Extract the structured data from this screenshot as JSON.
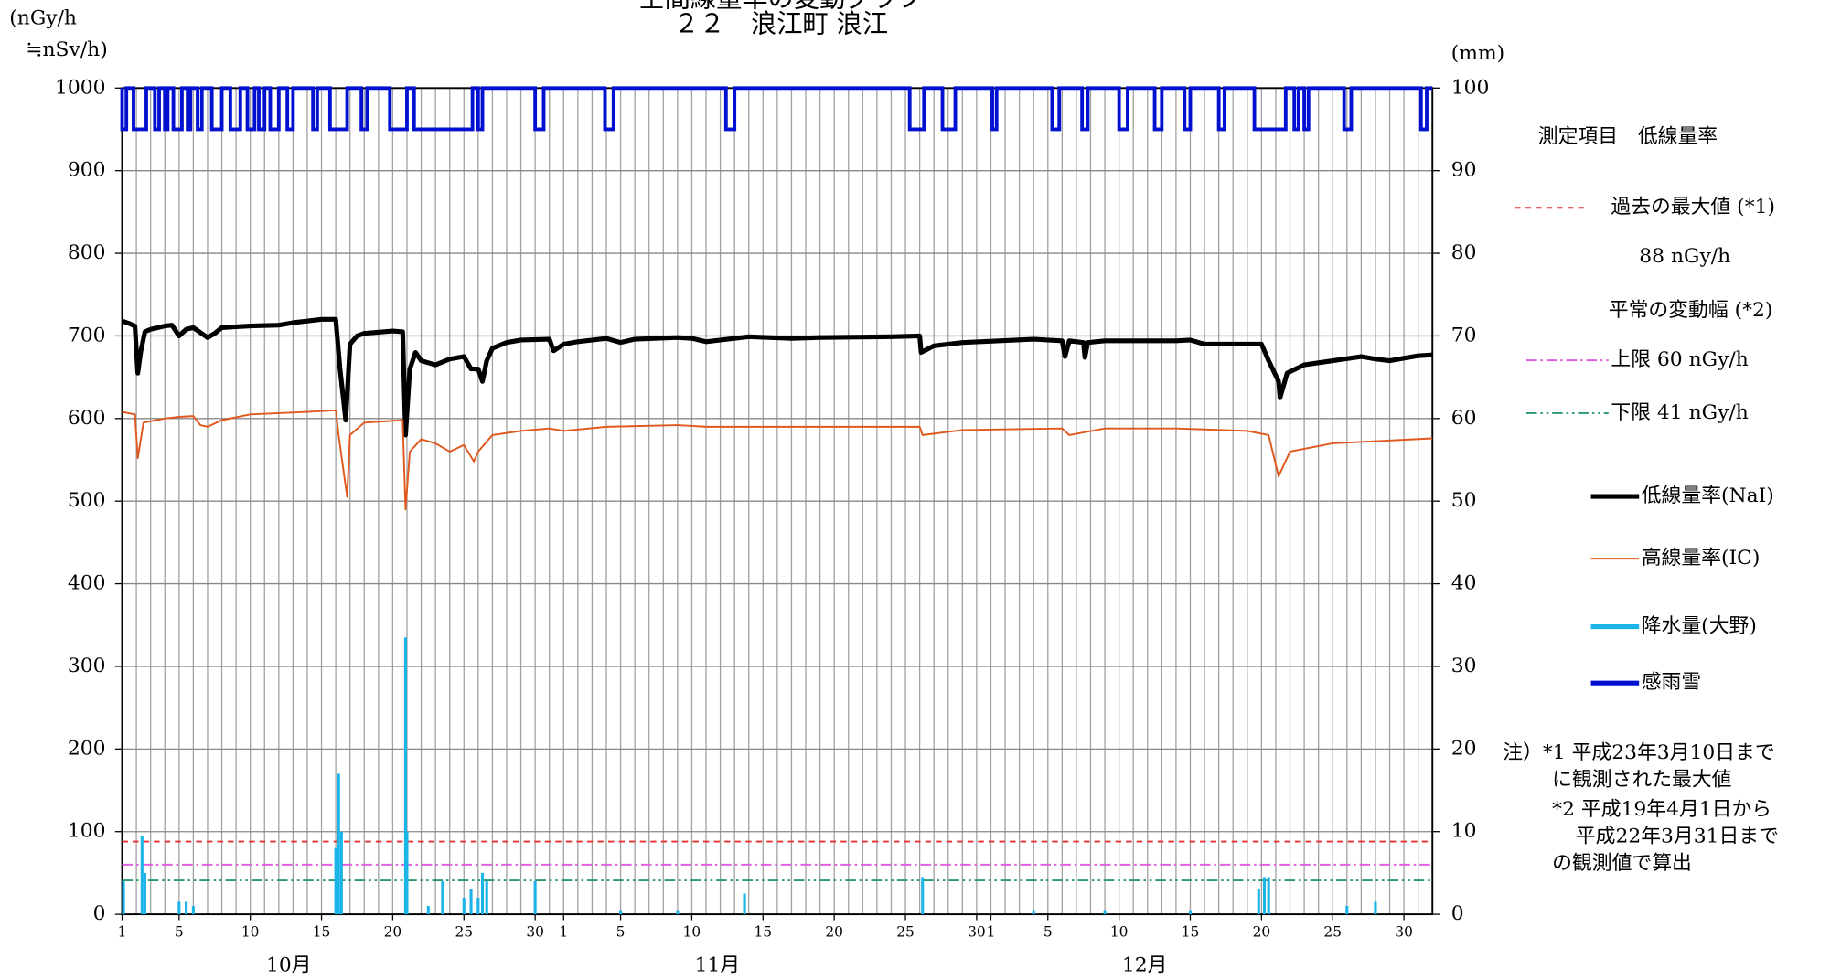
{
  "chart_data": {
    "type": "line",
    "title": "空間線量率の変動グラフ",
    "subtitle": "２２　浪江町 浪江",
    "ylabel": [
      "(nGy/h",
      "≒nSv/h)"
    ],
    "y2label": "(mm)",
    "xlim": [
      1,
      93
    ],
    "xticks": [
      1,
      5,
      10,
      15,
      20,
      25,
      30,
      {
        "value": 32,
        "label": "1"
      },
      {
        "value": 36,
        "label": "5"
      },
      {
        "value": 41,
        "label": "10"
      },
      {
        "value": 46,
        "label": "15"
      },
      {
        "value": 51,
        "label": "20"
      },
      {
        "value": 56,
        "label": "25"
      },
      {
        "value": 61,
        "label": "30"
      },
      {
        "value": 62,
        "label": "1"
      },
      {
        "value": 66,
        "label": "5"
      },
      {
        "value": 71,
        "label": "10"
      },
      {
        "value": 76,
        "label": "15"
      },
      {
        "value": 81,
        "label": "20"
      },
      {
        "value": 86,
        "label": "25"
      },
      {
        "value": 91,
        "label": "30"
      }
    ],
    "months": [
      "10月",
      "11月",
      "12月"
    ],
    "ylim": [
      0,
      1000
    ],
    "yticks": [
      0,
      100,
      200,
      300,
      400,
      500,
      600,
      700,
      800,
      900,
      1000
    ],
    "y2lim": [
      0,
      100
    ],
    "y2ticks": [
      0,
      10,
      20,
      30,
      40,
      50,
      60,
      70,
      80,
      90,
      100
    ],
    "grid": true,
    "legend_title": "測定項目　低線量率",
    "legend_heading2": "平常の変動幅 (*2)",
    "reference_lines": [
      {
        "name": "過去の最大値 (*1)",
        "label": "88 nGy/h",
        "value": 88,
        "color": "#e83030"
      },
      {
        "name": "上限 60 nGy/h",
        "value": 60,
        "color": "#e060e0"
      },
      {
        "name": "下限 41 nGy/h",
        "value": 41,
        "color": "#2a9a6a"
      }
    ],
    "notes": [
      "注）*1 平成23年3月10日まで",
      "に観測された最大値",
      "*2 平成19年4月1日から",
      "平成22年3月31日まで",
      "の観測値で算出"
    ],
    "series": [
      {
        "name": "低線量率(NaI)",
        "color": "#000000",
        "x": [
          1,
          1.5,
          1.9,
          2.1,
          2.3,
          2.6,
          3,
          4,
          4.5,
          5,
          5.5,
          6,
          7,
          7.5,
          8,
          10,
          12,
          13,
          14,
          15,
          16,
          16.3,
          16.7,
          17,
          17.5,
          18,
          20,
          20.7,
          20.9,
          21.2,
          21.6,
          22,
          23,
          24,
          25,
          25.5,
          26,
          26.3,
          26.6,
          27,
          28,
          29,
          31,
          31.3,
          32,
          33,
          35,
          36,
          37,
          40,
          41,
          42,
          45,
          48,
          50,
          55,
          57,
          57.1,
          58,
          60,
          65,
          67,
          67.2,
          67.5,
          68.5,
          68.6,
          68.8,
          70,
          75,
          76,
          77,
          80,
          81,
          81.5,
          82.2,
          82.3,
          82.8,
          84,
          86,
          88,
          89,
          90,
          91,
          92,
          93
        ],
        "values": [
          718,
          715,
          712,
          655,
          680,
          705,
          708,
          712,
          713,
          700,
          708,
          710,
          698,
          703,
          710,
          712,
          713,
          716,
          718,
          720,
          720,
          660,
          598,
          690,
          700,
          703,
          706,
          705,
          580,
          660,
          680,
          670,
          665,
          672,
          675,
          660,
          660,
          645,
          670,
          685,
          692,
          695,
          696,
          682,
          690,
          693,
          697,
          692,
          696,
          698,
          697,
          693,
          699,
          697,
          698,
          699,
          700,
          680,
          688,
          692,
          696,
          694,
          675,
          694,
          692,
          674,
          692,
          694,
          694,
          695,
          690,
          690,
          690,
          670,
          645,
          625,
          655,
          665,
          670,
          675,
          672,
          670,
          673,
          676,
          677
        ]
      },
      {
        "name": "高線量率(IC)",
        "color": "#e0581c",
        "x": [
          1,
          1.9,
          2.1,
          2.5,
          4,
          5,
          6,
          6.5,
          7,
          8,
          10,
          14,
          16,
          16.2,
          16.8,
          17,
          18,
          20.7,
          20.9,
          21.2,
          22,
          23,
          24,
          25,
          25.7,
          26,
          27,
          29,
          31,
          32,
          35,
          40,
          42,
          50,
          57,
          57.2,
          60,
          67,
          67.5,
          70,
          75,
          80,
          81.5,
          82.2,
          83,
          86,
          93
        ],
        "values": [
          608,
          605,
          552,
          595,
          600,
          602,
          603,
          592,
          590,
          598,
          605,
          608,
          610,
          580,
          505,
          580,
          595,
          598,
          490,
          560,
          575,
          570,
          560,
          568,
          548,
          560,
          580,
          585,
          588,
          585,
          590,
          592,
          590,
          590,
          590,
          580,
          586,
          588,
          580,
          588,
          588,
          585,
          580,
          530,
          560,
          570,
          576
        ]
      },
      {
        "name": "降水量(大野)",
        "color": "#1ab4e8",
        "type": "bar",
        "axis": "y2",
        "x": [
          1.1,
          2.4,
          2.6,
          5,
          5.5,
          6,
          16,
          16.2,
          16.4,
          20.9,
          21,
          22.5,
          23.5,
          25,
          25.5,
          26,
          26.3,
          26.6,
          30,
          36,
          40,
          44.7,
          57.2,
          65,
          70,
          76,
          80.8,
          81.2,
          81.5,
          87,
          89
        ],
        "values": [
          4,
          9.5,
          5,
          1.5,
          1.5,
          1,
          8,
          17,
          10,
          33.5,
          10,
          1,
          4,
          2,
          3,
          2,
          5,
          4,
          4,
          0.5,
          0.5,
          2.5,
          4.5,
          0.5,
          0.5,
          0.5,
          3,
          4.5,
          4.5,
          1,
          1.5
        ]
      },
      {
        "name": "感雨雪",
        "color": "#0010d0",
        "type": "step",
        "axis": "y2",
        "x": [
          1,
          1.3,
          1.8,
          2.7,
          3.3,
          3.6,
          4,
          4.2,
          4.6,
          5.2,
          5.6,
          5.8,
          6.3,
          6.6,
          7.3,
          8,
          8.6,
          9.3,
          9.8,
          10.3,
          10.6,
          11,
          11.4,
          12,
          12.6,
          13,
          14.4,
          14.7,
          15.6,
          16.8,
          17.8,
          18.2,
          19.8,
          21,
          21.5,
          25.6,
          26,
          26.3,
          30,
          30.6,
          34.9,
          35.5,
          43.4,
          44,
          56.3,
          57.3,
          58.6,
          59.5,
          62.1,
          62.4,
          66.3,
          66.8,
          68.4,
          68.8,
          71,
          71.6,
          73.5,
          74,
          75.6,
          76,
          78,
          78.4,
          80.5,
          82.7,
          83.3,
          83.6,
          84,
          84.3,
          86.8,
          87.3,
          92.2,
          92.6
        ],
        "values": [
          95,
          100,
          95,
          100,
          95,
          100,
          95,
          100,
          95,
          100,
          95,
          100,
          95,
          100,
          95,
          100,
          95,
          100,
          95,
          100,
          95,
          100,
          95,
          100,
          95,
          100,
          95,
          100,
          95,
          100,
          95,
          100,
          95,
          100,
          95,
          100,
          95,
          100,
          95,
          100,
          95,
          100,
          95,
          100,
          95,
          100,
          95,
          100,
          95,
          100,
          95,
          100,
          95,
          100,
          95,
          100,
          95,
          100,
          95,
          100,
          95,
          100,
          95,
          100,
          95,
          100,
          95,
          100,
          95,
          100,
          95,
          100
        ]
      }
    ]
  }
}
